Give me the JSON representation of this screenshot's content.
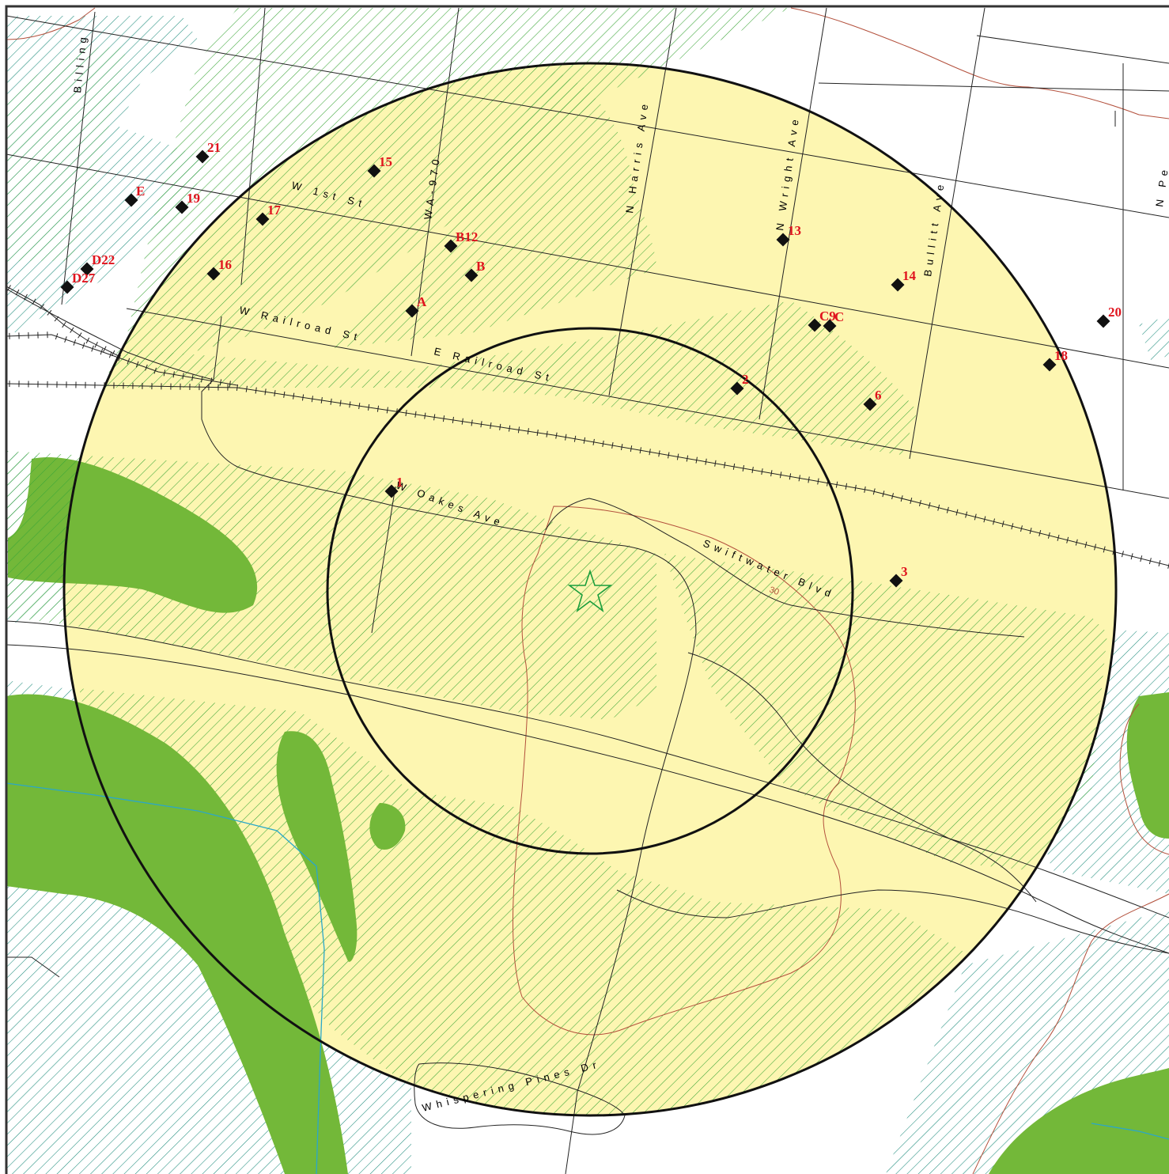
{
  "colors": {
    "buffer_fill": "#fdf6b1",
    "green_area": "#73b839",
    "teal_hatch": "#1e8c7c",
    "green_hatch": "#3aa536",
    "label_red": "#e0141e",
    "contour": "#b3503c",
    "water": "#2aa7c9"
  },
  "site_marker": {
    "icon": "star-icon"
  },
  "streets": [
    {
      "id": "billing",
      "text": "Billing"
    },
    {
      "id": "w1st",
      "text": "W 1st St"
    },
    {
      "id": "wa970",
      "text": "WA-970"
    },
    {
      "id": "nharris",
      "text": "N Harris Ave"
    },
    {
      "id": "nwright",
      "text": "N Wright Ave"
    },
    {
      "id": "bullitt",
      "text": "Bullitt Ave"
    },
    {
      "id": "npe",
      "text": "N Pe"
    },
    {
      "id": "wrailroad",
      "text": "W Railroad St"
    },
    {
      "id": "erailroad",
      "text": "E Railroad St"
    },
    {
      "id": "woakes",
      "text": "W Oakes Ave"
    },
    {
      "id": "swiftwater",
      "text": "Swiftwater Blvd"
    },
    {
      "id": "whispering",
      "text": "Whispering Pines Dr"
    }
  ],
  "contour_label": "30",
  "wells": [
    {
      "label": "21"
    },
    {
      "label": "15"
    },
    {
      "label": "E"
    },
    {
      "label": "19"
    },
    {
      "label": "17"
    },
    {
      "label": "B12"
    },
    {
      "label": "D22"
    },
    {
      "label": "D27"
    },
    {
      "label": "16"
    },
    {
      "label": "B"
    },
    {
      "label": "A"
    },
    {
      "label": "13"
    },
    {
      "label": "14"
    },
    {
      "label": "C9"
    },
    {
      "label": "C"
    },
    {
      "label": "20"
    },
    {
      "label": "18"
    },
    {
      "label": "2"
    },
    {
      "label": "6"
    },
    {
      "label": "1"
    },
    {
      "label": "3"
    }
  ]
}
